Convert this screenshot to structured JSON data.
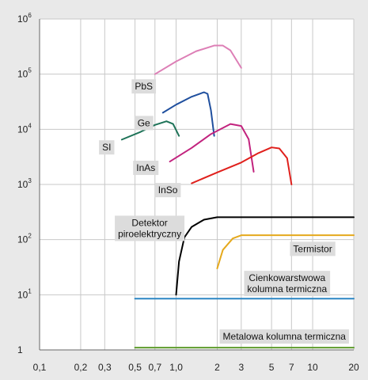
{
  "chart_data": {
    "type": "line",
    "title": "",
    "xlabel": "",
    "ylabel": "",
    "x_scale": "log",
    "y_scale": "log",
    "xlim": [
      0.1,
      20
    ],
    "ylim": [
      1,
      1000000
    ],
    "grid": true,
    "x_ticks": [
      {
        "value": 0.1,
        "label": "0,1"
      },
      {
        "value": 0.2,
        "label": "0,2"
      },
      {
        "value": 0.3,
        "label": "0,3"
      },
      {
        "value": 0.5,
        "label": "0,5"
      },
      {
        "value": 0.7,
        "label": "0,7"
      },
      {
        "value": 1.0,
        "label": "1,0"
      },
      {
        "value": 2,
        "label": "2"
      },
      {
        "value": 3,
        "label": "3"
      },
      {
        "value": 5,
        "label": "5"
      },
      {
        "value": 7,
        "label": "7"
      },
      {
        "value": 10,
        "label": "10"
      },
      {
        "value": 20,
        "label": "20"
      }
    ],
    "y_ticks": [
      {
        "value": 1,
        "base": "1",
        "exp": ""
      },
      {
        "value": 10,
        "base": "10",
        "exp": "1"
      },
      {
        "value": 100,
        "base": "10",
        "exp": "2"
      },
      {
        "value": 1000,
        "base": "10",
        "exp": "3"
      },
      {
        "value": 10000,
        "base": "10",
        "exp": "4"
      },
      {
        "value": 100000,
        "base": "10",
        "exp": "5"
      },
      {
        "value": 1000000,
        "base": "10",
        "exp": "6"
      }
    ],
    "series": [
      {
        "name": "PbS",
        "color": "#dd7fb6",
        "label_at": [
          0.58,
          60000
        ],
        "label_anchor": "middle",
        "points": [
          [
            0.7,
            100000
          ],
          [
            1.0,
            170000
          ],
          [
            1.4,
            260000
          ],
          [
            1.9,
            330000
          ],
          [
            2.2,
            330000
          ],
          [
            2.5,
            270000
          ],
          [
            3.0,
            130000
          ]
        ]
      },
      {
        "name": "Ge",
        "color": "#1f4f9e",
        "label_at": [
          0.58,
          13000
        ],
        "label_anchor": "middle",
        "points": [
          [
            0.8,
            20000
          ],
          [
            1.0,
            28000
          ],
          [
            1.3,
            39000
          ],
          [
            1.6,
            47000
          ],
          [
            1.7,
            44000
          ],
          [
            1.8,
            22000
          ],
          [
            1.9,
            7600
          ]
        ]
      },
      {
        "name": "SI",
        "color": "#1e7358",
        "label_at": [
          0.31,
          4700
        ],
        "label_anchor": "middle",
        "points": [
          [
            0.4,
            6500
          ],
          [
            0.55,
            9000
          ],
          [
            0.7,
            12000
          ],
          [
            0.85,
            14000
          ],
          [
            0.95,
            12500
          ],
          [
            1.05,
            7600
          ]
        ]
      },
      {
        "name": "InAs",
        "color": "#c2237e",
        "label_at": [
          0.6,
          2000
        ],
        "label_anchor": "middle",
        "points": [
          [
            0.9,
            2600
          ],
          [
            1.3,
            4600
          ],
          [
            1.8,
            8200
          ],
          [
            2.5,
            12500
          ],
          [
            3.0,
            11500
          ],
          [
            3.4,
            6600
          ],
          [
            3.7,
            1700
          ]
        ]
      },
      {
        "name": "InSo",
        "color": "#e0201c",
        "label_at": [
          0.87,
          790
        ],
        "label_anchor": "middle",
        "points": [
          [
            1.3,
            1050
          ],
          [
            2.0,
            1650
          ],
          [
            3.0,
            2500
          ],
          [
            4.0,
            3700
          ],
          [
            5.0,
            4700
          ],
          [
            5.7,
            4500
          ],
          [
            6.5,
            3000
          ],
          [
            7.0,
            1000
          ]
        ]
      },
      {
        "name": "Detektor\npiroelektryczny",
        "color": "#000000",
        "label_at": [
          0.64,
          160
        ],
        "label_anchor": "middle",
        "points": [
          [
            1.0,
            10
          ],
          [
            1.05,
            40
          ],
          [
            1.15,
            110
          ],
          [
            1.3,
            170
          ],
          [
            1.6,
            230
          ],
          [
            2.0,
            255
          ],
          [
            20,
            255
          ]
        ]
      },
      {
        "name": "Termistor",
        "color": "#e5a91d",
        "label_at": [
          10,
          68
        ],
        "label_anchor": "middle",
        "points": [
          [
            2.0,
            30
          ],
          [
            2.2,
            65
          ],
          [
            2.6,
            105
          ],
          [
            3.0,
            120
          ],
          [
            20,
            120
          ]
        ]
      },
      {
        "name": "Cienkowarstwowa\nkolumna termiczna",
        "color": "#2b86c4",
        "label_at": [
          6.5,
          16
        ],
        "label_anchor": "middle",
        "points": [
          [
            0.5,
            8.5
          ],
          [
            20,
            8.5
          ]
        ]
      },
      {
        "name": "Metalowa kolumna termiczna",
        "color": "#5e9c2c",
        "label_at": [
          6.2,
          1.75
        ],
        "label_anchor": "middle",
        "points": [
          [
            0.5,
            1.1
          ],
          [
            20,
            1.1
          ]
        ]
      }
    ]
  }
}
